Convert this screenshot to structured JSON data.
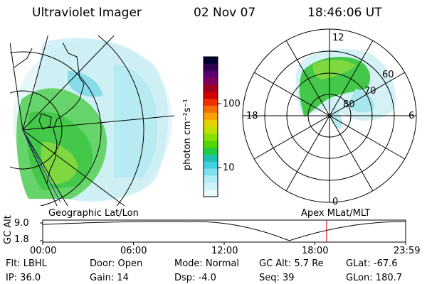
{
  "header": {
    "title": "Ultraviolet Imager",
    "date": "02 Nov 07",
    "time": "18:46:06 UT"
  },
  "colorbar": {
    "label": "photon cm⁻²s⁻¹",
    "ticks": [
      "100",
      "10"
    ],
    "colors": [
      "#000030",
      "#300050",
      "#5a0070",
      "#800060",
      "#a00020",
      "#d00000",
      "#f03000",
      "#f57000",
      "#f8a000",
      "#e8d000",
      "#c0e000",
      "#88e000",
      "#50d800",
      "#20cc40",
      "#20c0b0",
      "#40d0e0",
      "#80e0f0",
      "#b0eef8",
      "#d0f4fa",
      "#e8fafc"
    ]
  },
  "geo_map": {
    "label": "Geographic Lat/Lon"
  },
  "polar_map": {
    "label": "Apex MLat/MLT",
    "mlt_labels": {
      "top": "12",
      "left": "18",
      "right": "6",
      "bottom": "0"
    },
    "lat_labels": [
      "60",
      "70",
      "80"
    ]
  },
  "timeline": {
    "ylabel": "GC Alt",
    "yticks": [
      "9.0",
      "1.8"
    ],
    "xticks": [
      "00:00",
      "06:00",
      "12:00",
      "18:00",
      "23:59"
    ],
    "marker_time_hours": 18.77,
    "marker_color": "#cc0000"
  },
  "info": {
    "flt": "Flt: LBHL",
    "ip": "IP: 36.0",
    "door": "Door: Open",
    "gain": "Gain: 14",
    "mode": "Mode: Normal",
    "dsp": "Dsp:    -4.0",
    "gcalt": "GC Alt: 5.7 Re",
    "seq": "Seq: 39",
    "glat": "GLat:  -67.6",
    "glon": "GLon: 180.7"
  }
}
